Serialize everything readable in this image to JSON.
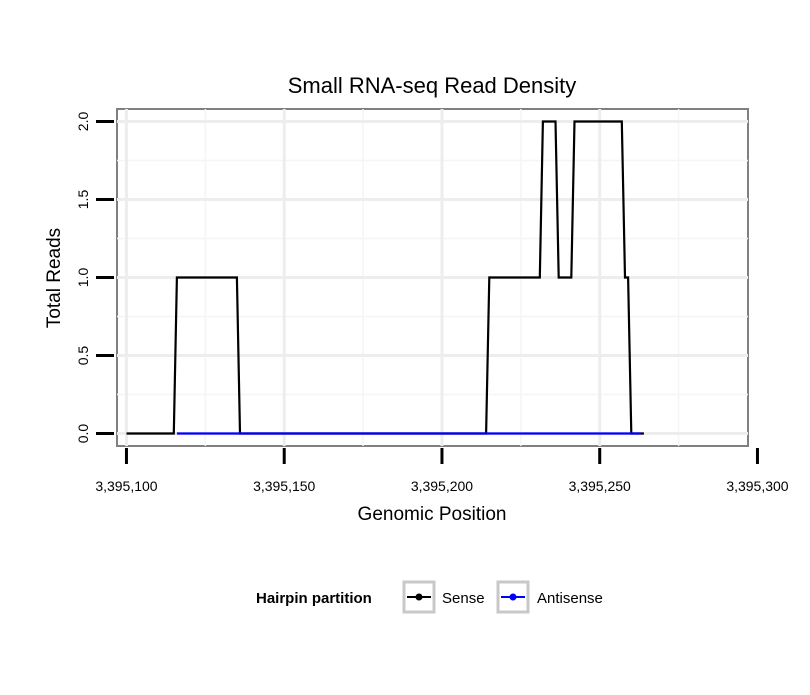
{
  "chart_data": {
    "type": "line",
    "title": "Small RNA-seq Read Density",
    "xlabel": "Genomic Position",
    "ylabel": "Total Reads",
    "xlim": [
      3395097,
      3395297
    ],
    "ylim": [
      -0.08,
      2.08
    ],
    "x_ticks": [
      3395100,
      3395150,
      3395200,
      3395250,
      3395300
    ],
    "x_tick_labels": [
      "3,395,100",
      "3,395,150",
      "3,395,200",
      "3,395,250",
      "3,395,300"
    ],
    "y_ticks": [
      0,
      0.5,
      1,
      1.5,
      2
    ],
    "y_tick_labels": [
      "0.0",
      "0.5",
      "1.0",
      "1.5",
      "2.0"
    ],
    "grid": true,
    "legend": {
      "title": "Hairpin partition",
      "position": "bottom",
      "entries": [
        "Sense",
        "Antisense"
      ]
    },
    "series": [
      {
        "name": "Sense",
        "color": "#000000",
        "x": [
          3395100,
          3395115,
          3395116,
          3395135,
          3395136,
          3395214,
          3395215,
          3395231,
          3395232,
          3395236,
          3395237,
          3395241,
          3395242,
          3395257,
          3395258,
          3395259,
          3395260,
          3395263,
          3395264
        ],
        "y": [
          0,
          0,
          1,
          1,
          0,
          0,
          1,
          1,
          2,
          2,
          1,
          1,
          2,
          2,
          1,
          1,
          0,
          0,
          0
        ]
      },
      {
        "name": "Antisense",
        "color": "#0000ff",
        "x": [
          3395116,
          3395136,
          3395215,
          3395263
        ],
        "y": [
          0,
          0,
          0,
          0
        ]
      }
    ]
  }
}
